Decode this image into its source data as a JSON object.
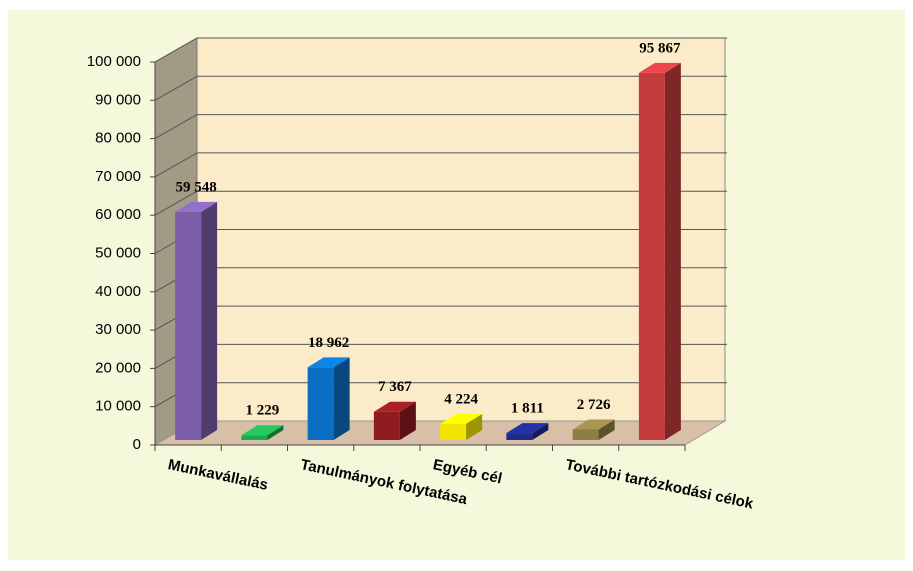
{
  "chart_data": {
    "type": "bar3d",
    "categories": [
      "Munkavállalás",
      null,
      "Tanulmányok folytatása",
      null,
      "Egyéb cél",
      null,
      "További tartózkodási célok",
      null
    ],
    "values": [
      59548,
      1229,
      18962,
      7367,
      4224,
      1811,
      2726,
      95867
    ],
    "value_labels": [
      "59 548",
      "1 229",
      "18 962",
      "7 367",
      "4 224",
      "1 811",
      "2 726",
      "95 867"
    ],
    "colors": [
      "#7b5ea7",
      "#1ea84c",
      "#0a6fc2",
      "#8e1b1f",
      "#f2e300",
      "#1f2a8a",
      "#8c7d44",
      "#c43b3d"
    ],
    "ylim": [
      0,
      100000
    ],
    "yticks": [
      0,
      {
        "value": 10000,
        "label": "10 000"
      },
      {
        "value": 20000,
        "label": "20 000"
      },
      {
        "value": 30000,
        "label": "30 000"
      },
      {
        "value": 40000,
        "label": "40 000"
      },
      {
        "value": 50000,
        "label": "50 000"
      },
      {
        "value": 60000,
        "label": "60 000"
      },
      {
        "value": 70000,
        "label": "70 000"
      },
      {
        "value": 80000,
        "label": "80 000"
      },
      {
        "value": 90000,
        "label": "90 000"
      },
      {
        "value": 100000,
        "label": "100 000"
      }
    ],
    "grid": true
  }
}
